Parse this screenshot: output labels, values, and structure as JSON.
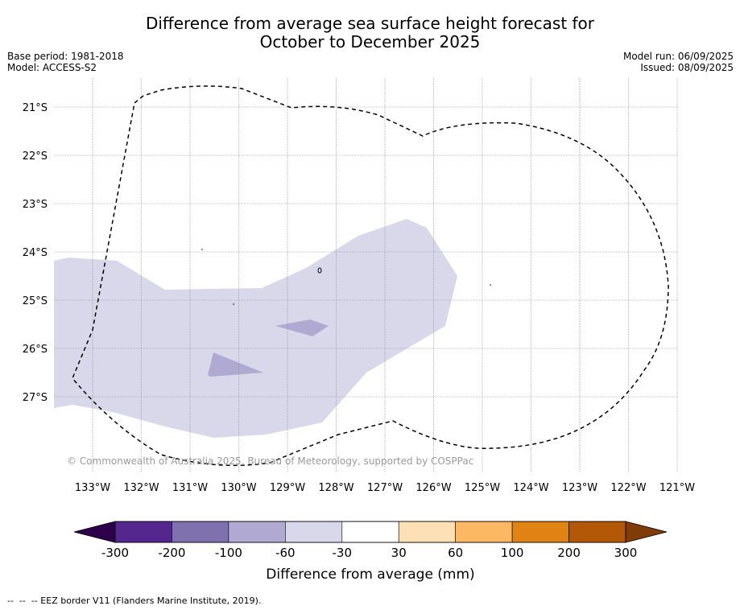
{
  "title": {
    "line1": "Difference from average sea surface height forecast for",
    "line2": "October to December 2025"
  },
  "meta_left": {
    "base_period": "Base period: 1981-2018",
    "model": "Model: ACCESS-S2"
  },
  "meta_right": {
    "model_run": "Model run: 06/09/2025",
    "issued": "Issued: 08/09/2025"
  },
  "map": {
    "lat_labels": [
      "21°S",
      "22°S",
      "23°S",
      "24°S",
      "25°S",
      "26°S",
      "27°S"
    ],
    "lon_labels": [
      "133°W",
      "132°W",
      "131°W",
      "130°W",
      "129°W",
      "128°W",
      "127°W",
      "126°W",
      "125°W",
      "124°W",
      "123°W",
      "122°W",
      "121°W"
    ],
    "copyright": "© Commonwealth of Australia 2025, Bureau of Meteorology, supported by COSPPac",
    "band_colors": {
      "minus60_to_minus30": "#d8d8ea",
      "minus100_to_minus60": "#b0a9d2"
    }
  },
  "colorbar": {
    "title": "Difference from average (mm)",
    "tick_labels": [
      "-300",
      "-200",
      "-100",
      "-60",
      "-30",
      "30",
      "60",
      "100",
      "200",
      "300"
    ],
    "colors": [
      "#54278f",
      "#7f71ae",
      "#b0a9d2",
      "#d8d8ea",
      "#ffffff",
      "#fee0b6",
      "#fdb863",
      "#e08214",
      "#b35806"
    ],
    "extend_low_color": "#2d004b",
    "extend_high_color": "#7f3b08"
  },
  "footer": {
    "legend_text": "--  --  -- EEZ border V11 (Flanders Marine Institute, 2019)."
  }
}
